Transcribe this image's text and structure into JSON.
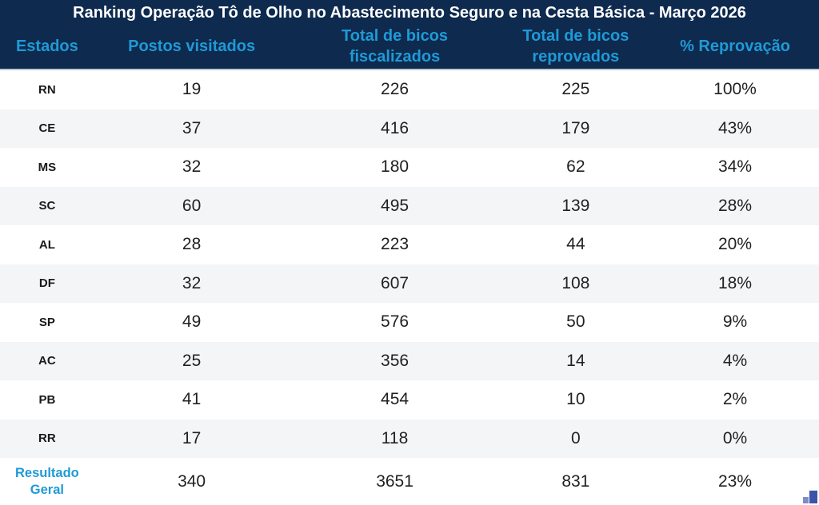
{
  "chart_data": {
    "type": "table",
    "title": "Ranking Operação Tô de Olho no Abastecimento Seguro e na Cesta Básica - Março 2026",
    "columns": [
      "Estados",
      "Postos visitados",
      "Total de bicos\nfiscalizados",
      "Total de bicos\nreprovados",
      "% Reprovação"
    ],
    "rows": [
      [
        "RN",
        19,
        226,
        225,
        "100%"
      ],
      [
        "CE",
        37,
        416,
        179,
        "43%"
      ],
      [
        "MS",
        32,
        180,
        62,
        "34%"
      ],
      [
        "SC",
        60,
        495,
        139,
        "28%"
      ],
      [
        "AL",
        28,
        223,
        44,
        "20%"
      ],
      [
        "DF",
        32,
        607,
        108,
        "18%"
      ],
      [
        "SP",
        49,
        576,
        50,
        "9%"
      ],
      [
        "AC",
        25,
        356,
        14,
        "4%"
      ],
      [
        "PB",
        41,
        454,
        10,
        "2%"
      ],
      [
        "RR",
        17,
        118,
        0,
        "0%"
      ]
    ],
    "total_row": [
      "Resultado Geral",
      340,
      3651,
      831,
      "23%"
    ],
    "layout": {
      "striped": true,
      "header_position": "top",
      "sorted_by": "% Reprovação desc"
    }
  },
  "colors": {
    "header_bg": "#0E2A4E",
    "title_text": "#FFFFFF",
    "accent_cyan": "#1F9AD6",
    "row_alt_bg": "#F4F5F7",
    "cell_text": "#212121",
    "header_separator": "#BFCBD9",
    "corner_icon_dark": "#3B53A8",
    "corner_icon_light": "#7F8CC7"
  },
  "icons": {
    "corner": "bar-chart-icon"
  }
}
